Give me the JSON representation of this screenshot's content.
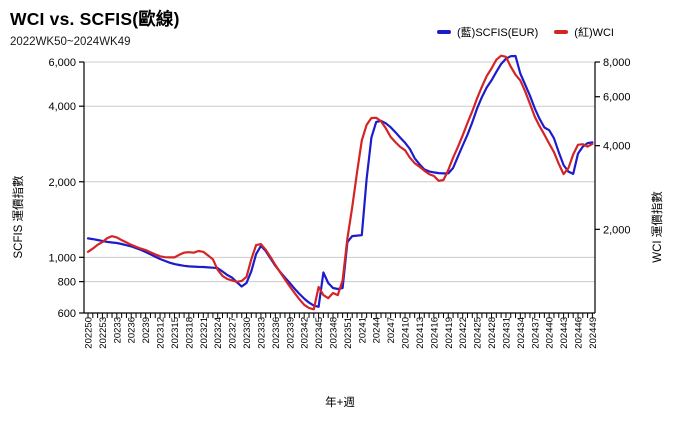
{
  "chart_data": {
    "type": "line",
    "title": "WCI vs. SCFIS(歐線)",
    "subtitle": "2022WK50~2024WK49",
    "xlabel": "年+週",
    "ylabel_left": "SCFIS 運價指數",
    "ylabel_right": "WCI 運價指數",
    "x_first_week": "202250",
    "x_last_week": "202449",
    "x_points": 106,
    "x_tick_label_step": 3,
    "x_tick_labels": [
      "202250",
      "202253",
      "20233",
      "20236",
      "20239",
      "202312",
      "202315",
      "202318",
      "202321",
      "202324",
      "202327",
      "202330",
      "202333",
      "202336",
      "202339",
      "202342",
      "202345",
      "202348",
      "202351",
      "20241",
      "20244",
      "20247",
      "202410",
      "202413",
      "202416",
      "202419",
      "202422",
      "202425",
      "202428",
      "202431",
      "202434",
      "202437",
      "202440",
      "202443",
      "202446",
      "202449"
    ],
    "left_axis": {
      "scale": "log",
      "min": 600,
      "max": 6000,
      "tick_values": [
        600,
        800,
        1000,
        2000,
        4000,
        6000
      ],
      "tick_labels": [
        "600",
        "800",
        "1,000",
        "2,000",
        "4,000",
        "6,000"
      ]
    },
    "right_axis": {
      "scale": "log",
      "min": 1000,
      "max": 8000,
      "tick_values": [
        2000,
        4000,
        6000,
        8000
      ],
      "tick_labels": [
        "2,000",
        "4,000",
        "6,000",
        "8,000"
      ]
    },
    "grid": "horizontal-only",
    "legend": [
      {
        "label": "(藍)SCFIS(EUR)",
        "color": "#1c1ccc"
      },
      {
        "label": "(紅)WCI",
        "color": "#d42424"
      }
    ],
    "series": [
      {
        "name": "SCFIS(EUR)",
        "axis": "left",
        "color": "#1c1ccc",
        "values": [
          1190,
          1182,
          1172,
          1162,
          1152,
          1146,
          1140,
          1130,
          1118,
          1105,
          1088,
          1070,
          1050,
          1028,
          1006,
          985,
          968,
          952,
          940,
          932,
          925,
          920,
          918,
          916,
          915,
          912,
          909,
          905,
          878,
          850,
          830,
          795,
          765,
          790,
          880,
          1030,
          1110,
          1060,
          990,
          925,
          875,
          830,
          790,
          750,
          715,
          685,
          660,
          642,
          635,
          870,
          790,
          755,
          748,
          755,
          1150,
          1215,
          1220,
          1225,
          2050,
          3000,
          3460,
          3500,
          3420,
          3300,
          3150,
          3000,
          2860,
          2700,
          2480,
          2350,
          2240,
          2200,
          2180,
          2165,
          2160,
          2160,
          2270,
          2520,
          2790,
          3080,
          3450,
          3920,
          4350,
          4750,
          5070,
          5480,
          5890,
          6180,
          6330,
          6340,
          5400,
          4880,
          4400,
          3920,
          3560,
          3290,
          3210,
          2980,
          2620,
          2330,
          2195,
          2150,
          2590,
          2760,
          2850,
          2870
        ]
      },
      {
        "name": "WCI",
        "axis": "right",
        "color": "#d42424",
        "values": [
          1660,
          1705,
          1760,
          1800,
          1860,
          1890,
          1870,
          1830,
          1795,
          1760,
          1730,
          1705,
          1685,
          1655,
          1625,
          1600,
          1588,
          1585,
          1585,
          1620,
          1650,
          1655,
          1648,
          1672,
          1660,
          1610,
          1560,
          1430,
          1360,
          1325,
          1310,
          1295,
          1305,
          1350,
          1560,
          1755,
          1770,
          1690,
          1590,
          1490,
          1400,
          1320,
          1245,
          1180,
          1120,
          1070,
          1042,
          1031,
          1240,
          1160,
          1130,
          1180,
          1160,
          1310,
          1855,
          2400,
          3200,
          4180,
          4750,
          5030,
          5040,
          4900,
          4620,
          4300,
          4120,
          3960,
          3850,
          3620,
          3460,
          3360,
          3250,
          3160,
          3110,
          2990,
          3010,
          3270,
          3620,
          3960,
          4360,
          4830,
          5320,
          5920,
          6520,
          7120,
          7580,
          8150,
          8430,
          8350,
          7700,
          7200,
          6870,
          6280,
          5650,
          5080,
          4700,
          4380,
          4070,
          3790,
          3440,
          3160,
          3320,
          3720,
          4030,
          4050,
          3970,
          4060
        ]
      }
    ],
    "colors": {
      "grid": "#cccccc",
      "axis": "#000000"
    }
  }
}
